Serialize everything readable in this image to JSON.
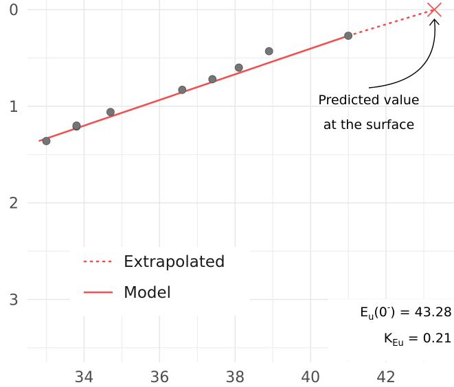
{
  "chart_data": {
    "type": "scatter",
    "title": "",
    "xlabel": "",
    "ylabel": "",
    "xlim": [
      32.5,
      43.8
    ],
    "ylim": [
      3.65,
      -0.1
    ],
    "y_axis_reversed": true,
    "x_ticks": [
      34,
      36,
      38,
      40,
      42
    ],
    "x_tick_labels": [
      "34",
      "36",
      "38",
      "40",
      "42"
    ],
    "y_ticks": [
      0,
      1,
      2,
      3
    ],
    "y_tick_labels": [
      "0",
      "1",
      "2",
      "3"
    ],
    "grid": true,
    "points": [
      {
        "x": 33.0,
        "y": 1.36
      },
      {
        "x": 33.8,
        "y": 1.21
      },
      {
        "x": 33.8,
        "y": 1.2
      },
      {
        "x": 34.7,
        "y": 1.06
      },
      {
        "x": 36.6,
        "y": 0.83
      },
      {
        "x": 37.4,
        "y": 0.72
      },
      {
        "x": 38.1,
        "y": 0.6
      },
      {
        "x": 38.9,
        "y": 0.43
      },
      {
        "x": 41.0,
        "y": 0.27
      }
    ],
    "series": [
      {
        "name": "Model",
        "style": "solid",
        "x": [
          32.8,
          41.0
        ],
        "y": [
          1.36,
          0.27
        ]
      },
      {
        "name": "Extrapolated",
        "style": "dotted",
        "x": [
          41.0,
          43.28
        ],
        "y": [
          0.27,
          0.0
        ]
      }
    ],
    "legend": {
      "position": "bottom-left",
      "entries": [
        "Extrapolated",
        "Model"
      ]
    },
    "predicted_point": {
      "x": 43.28,
      "y": 0.0
    },
    "annotation": {
      "line1": "Predicted value",
      "line2": "at the surface"
    },
    "stats": {
      "eu_main": "E",
      "eu_sub": "u",
      "eu_mid": "(0",
      "eu_sup": "-",
      "eu_end": ") = 43.28",
      "k_main": "K",
      "k_sub": "Eu",
      "k_end": " = 0.21"
    },
    "colors": {
      "model": "#f05050",
      "points": "#757575",
      "point_edge": "#555555",
      "grid": "#e6e6e6",
      "text": "#4d4d4d"
    }
  }
}
